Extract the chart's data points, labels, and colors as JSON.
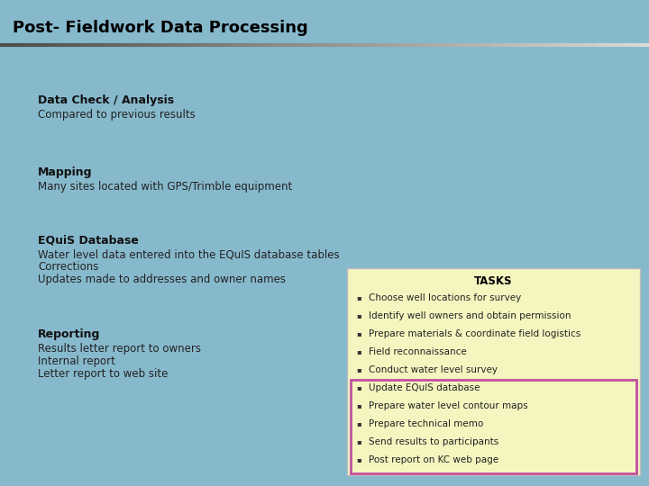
{
  "title": "Post- Fieldwork Data Processing",
  "bg_color": "#87b9cc",
  "title_color": "#000000",
  "sections": [
    {
      "heading": "Data Check / Analysis",
      "lines": [
        "Compared to previous results"
      ]
    },
    {
      "heading": "Mapping",
      "lines": [
        "Many sites located with GPS/Trimble equipment"
      ]
    },
    {
      "heading": "EQuiS Database",
      "lines": [
        "Water level data entered into the EQuIS database tables",
        "Corrections",
        "Updates made to addresses and owner names"
      ]
    },
    {
      "heading": "Reporting",
      "lines": [
        "Results letter report to owners",
        "Internal report",
        "Letter report to web site"
      ]
    }
  ],
  "tasks_box": {
    "title": "TASKS",
    "items_normal": [
      "Choose well locations for survey",
      "Identify well owners and obtain permission",
      "Prepare materials & coordinate field logistics",
      "Field reconnaissance",
      "Conduct water level survey"
    ],
    "items_highlighted": [
      "Update EQuIS database",
      "Prepare water level contour maps",
      "Prepare technical memo",
      "Send results to participants",
      "Post report on KC web page"
    ],
    "box_color": "#f5f5c0",
    "border_color": "#bbbbbb",
    "highlight_border_color": "#c050a0",
    "title_color": "#000000"
  }
}
